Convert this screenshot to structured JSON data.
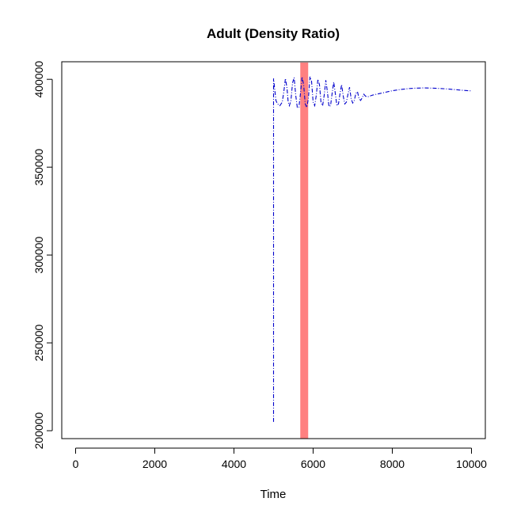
{
  "chart_data": {
    "type": "line",
    "title": "Adult (Density Ratio)",
    "xlabel": "Time",
    "ylabel": "",
    "xlim": [
      -350,
      10350
    ],
    "ylim": [
      195500,
      410000
    ],
    "x_ticks": [
      0,
      2000,
      4000,
      6000,
      8000,
      10000
    ],
    "y_ticks": [
      200000,
      250000,
      300000,
      350000,
      400000
    ],
    "x_tick_labels": [
      "0",
      "2000",
      "4000",
      "6000",
      "8000",
      "10000"
    ],
    "y_tick_labels": [
      "200000",
      "250000",
      "300000",
      "350000",
      "400000"
    ],
    "grid": false,
    "legend": "none",
    "series": [
      {
        "line_style": "dashed",
        "color": "#0000cc",
        "x": [
          5000,
          5000,
          5000,
          5060,
          5100,
          5160,
          5220,
          5260,
          5300,
          5340,
          5370,
          5400,
          5440,
          5480,
          5520,
          5560,
          5600,
          5640,
          5680,
          5720,
          5760,
          5800,
          5840,
          5880,
          5920,
          5960,
          6000,
          6040,
          6080,
          6120,
          6160,
          6200,
          6240,
          6280,
          6320,
          6360,
          6400,
          6440,
          6480,
          6520,
          6560,
          6600,
          6640,
          6680,
          6720,
          6760,
          6800,
          6840,
          6880,
          6920,
          6960,
          7000,
          7040,
          7080,
          7120,
          7160,
          7200,
          7240,
          7280,
          7320,
          7360,
          7400,
          7500,
          7600,
          7700,
          7800,
          7900,
          8000,
          8200,
          8400,
          8600,
          8800,
          9000,
          9200,
          9400,
          9600,
          9800,
          10000
        ],
        "y": [
          205000,
          385000,
          400500,
          388000,
          386000,
          385000,
          387000,
          393000,
          400500,
          395000,
          387000,
          385000,
          388000,
          398000,
          401000,
          391000,
          384000,
          384000,
          392000,
          401500,
          397000,
          386000,
          384000,
          389000,
          401500,
          399000,
          387000,
          385000,
          391000,
          400000,
          397000,
          386500,
          385000,
          391000,
          399500,
          393000,
          384500,
          385000,
          392000,
          398500,
          392000,
          385000,
          386000,
          392000,
          397000,
          390500,
          386000,
          387000,
          391500,
          395500,
          389000,
          386500,
          388000,
          392000,
          393000,
          389000,
          388000,
          389500,
          391500,
          390500,
          390000,
          390200,
          391000,
          391500,
          392000,
          392500,
          393000,
          393500,
          394200,
          394700,
          395000,
          395100,
          395000,
          394800,
          394500,
          394100,
          393700,
          393400
        ]
      }
    ],
    "highlight_band": {
      "x_from": 5675,
      "x_to": 5875,
      "color": "#ff8080"
    }
  }
}
